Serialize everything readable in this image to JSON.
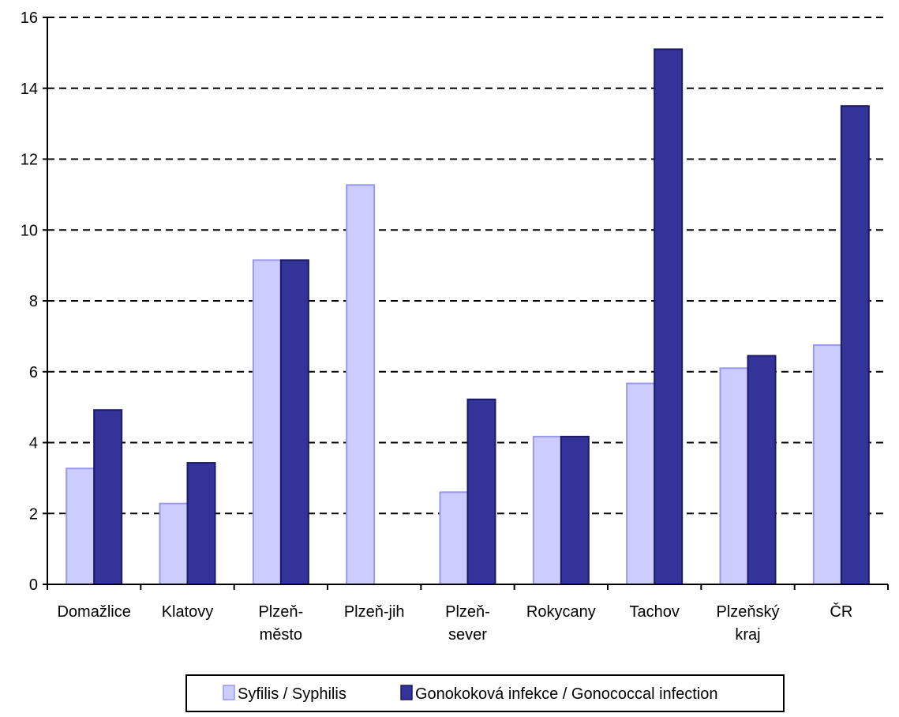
{
  "chart_data": {
    "type": "bar",
    "categories": [
      [
        "Domažlice"
      ],
      [
        "Klatovy"
      ],
      [
        "Plzeň-",
        "město"
      ],
      [
        "Plzeň-jih"
      ],
      [
        "Plzeň-",
        "sever"
      ],
      [
        "Rokycany"
      ],
      [
        "Tachov"
      ],
      [
        "Plzeňský",
        "kraj"
      ],
      [
        "ČR"
      ]
    ],
    "series": [
      {
        "name": "Syfilis / Syphilis",
        "color": "#ccccff",
        "stroke": "#9999ee",
        "values": [
          3.27,
          2.28,
          9.15,
          11.27,
          2.6,
          4.17,
          5.67,
          6.1,
          6.75
        ]
      },
      {
        "name": "Gonokoková infekce / Gonococcal infection",
        "color": "#333399",
        "stroke": "#1a1a66",
        "values": [
          4.92,
          3.43,
          9.15,
          0,
          5.22,
          4.17,
          15.1,
          6.45,
          13.5
        ]
      }
    ],
    "ylim": [
      0,
      16
    ],
    "yticks": [
      0,
      2,
      4,
      6,
      8,
      10,
      12,
      14,
      16
    ],
    "grid": "dashed-horizontal",
    "legend": "bottom-center"
  }
}
